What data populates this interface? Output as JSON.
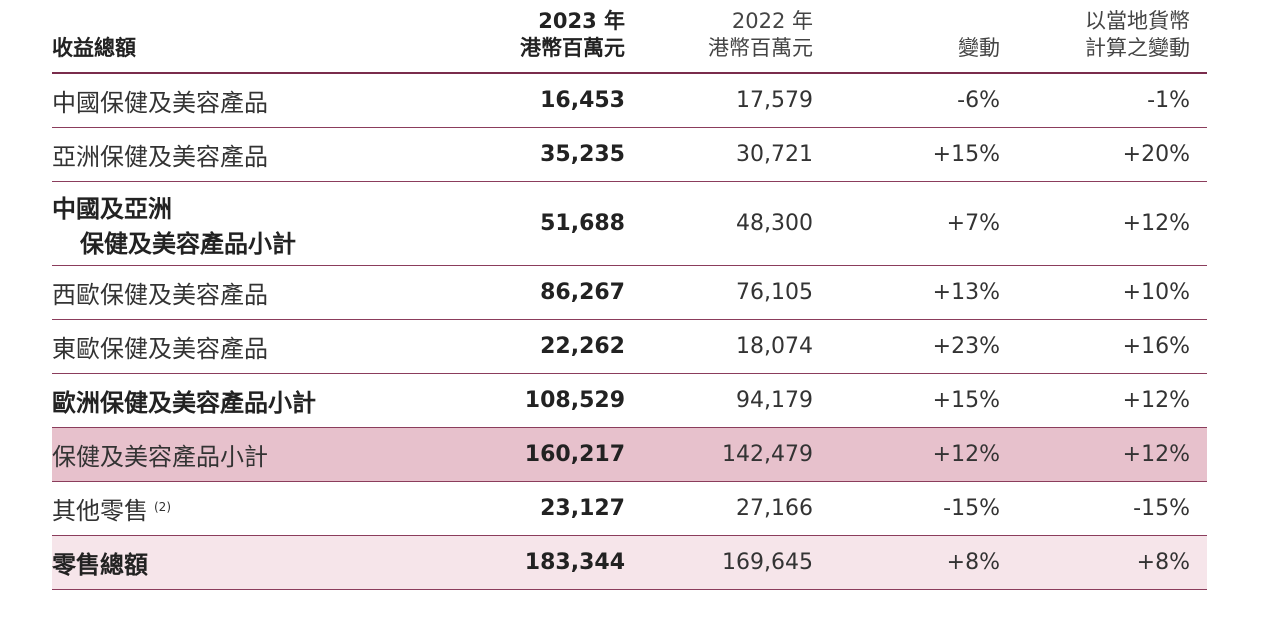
{
  "table": {
    "header": [
      [
        "收益總額"
      ],
      [
        "2023 年",
        "港幣百萬元"
      ],
      [
        "2022 年",
        "港幣百萬元"
      ],
      [
        "變動"
      ],
      [
        "以當地貨幣",
        "計算之變動"
      ]
    ],
    "header_bold": [
      true,
      true,
      false,
      false,
      false
    ],
    "rows": [
      {
        "label": [
          "中國保健及美容產品"
        ],
        "cells": [
          "16,453",
          "17,579",
          "-6%",
          "-1%"
        ],
        "bold": false
      },
      {
        "label": [
          "亞洲保健及美容產品"
        ],
        "cells": [
          "35,235",
          "30,721",
          "+15%",
          "+20%"
        ],
        "bold": false
      },
      {
        "label": [
          "中國及亞洲",
          "保健及美容產品小計"
        ],
        "cells": [
          "51,688",
          "48,300",
          "+7%",
          "+12%"
        ],
        "bold": true
      },
      {
        "label": [
          "西歐保健及美容產品"
        ],
        "cells": [
          "86,267",
          "76,105",
          "+13%",
          "+10%"
        ],
        "bold": false
      },
      {
        "label": [
          "東歐保健及美容產品"
        ],
        "cells": [
          "22,262",
          "18,074",
          "+23%",
          "+16%"
        ],
        "bold": false
      },
      {
        "label": [
          "歐洲保健及美容產品小計"
        ],
        "cells": [
          "108,529",
          "94,179",
          "+15%",
          "+12%"
        ],
        "bold": true
      },
      {
        "label": [
          "保健及美容產品小計"
        ],
        "cells": [
          "160,217",
          "142,479",
          "+12%",
          "+12%"
        ],
        "bold": false,
        "background": "#e7c1cc"
      },
      {
        "label": [
          "其他零售"
        ],
        "note": "(2)",
        "cells": [
          "23,127",
          "27,166",
          "-15%",
          "-15%"
        ],
        "bold": false
      },
      {
        "label": [
          "零售總額"
        ],
        "cells": [
          "183,344",
          "169,645",
          "+8%",
          "+8%"
        ],
        "bold": true,
        "background": "#f6e5ea"
      }
    ]
  }
}
